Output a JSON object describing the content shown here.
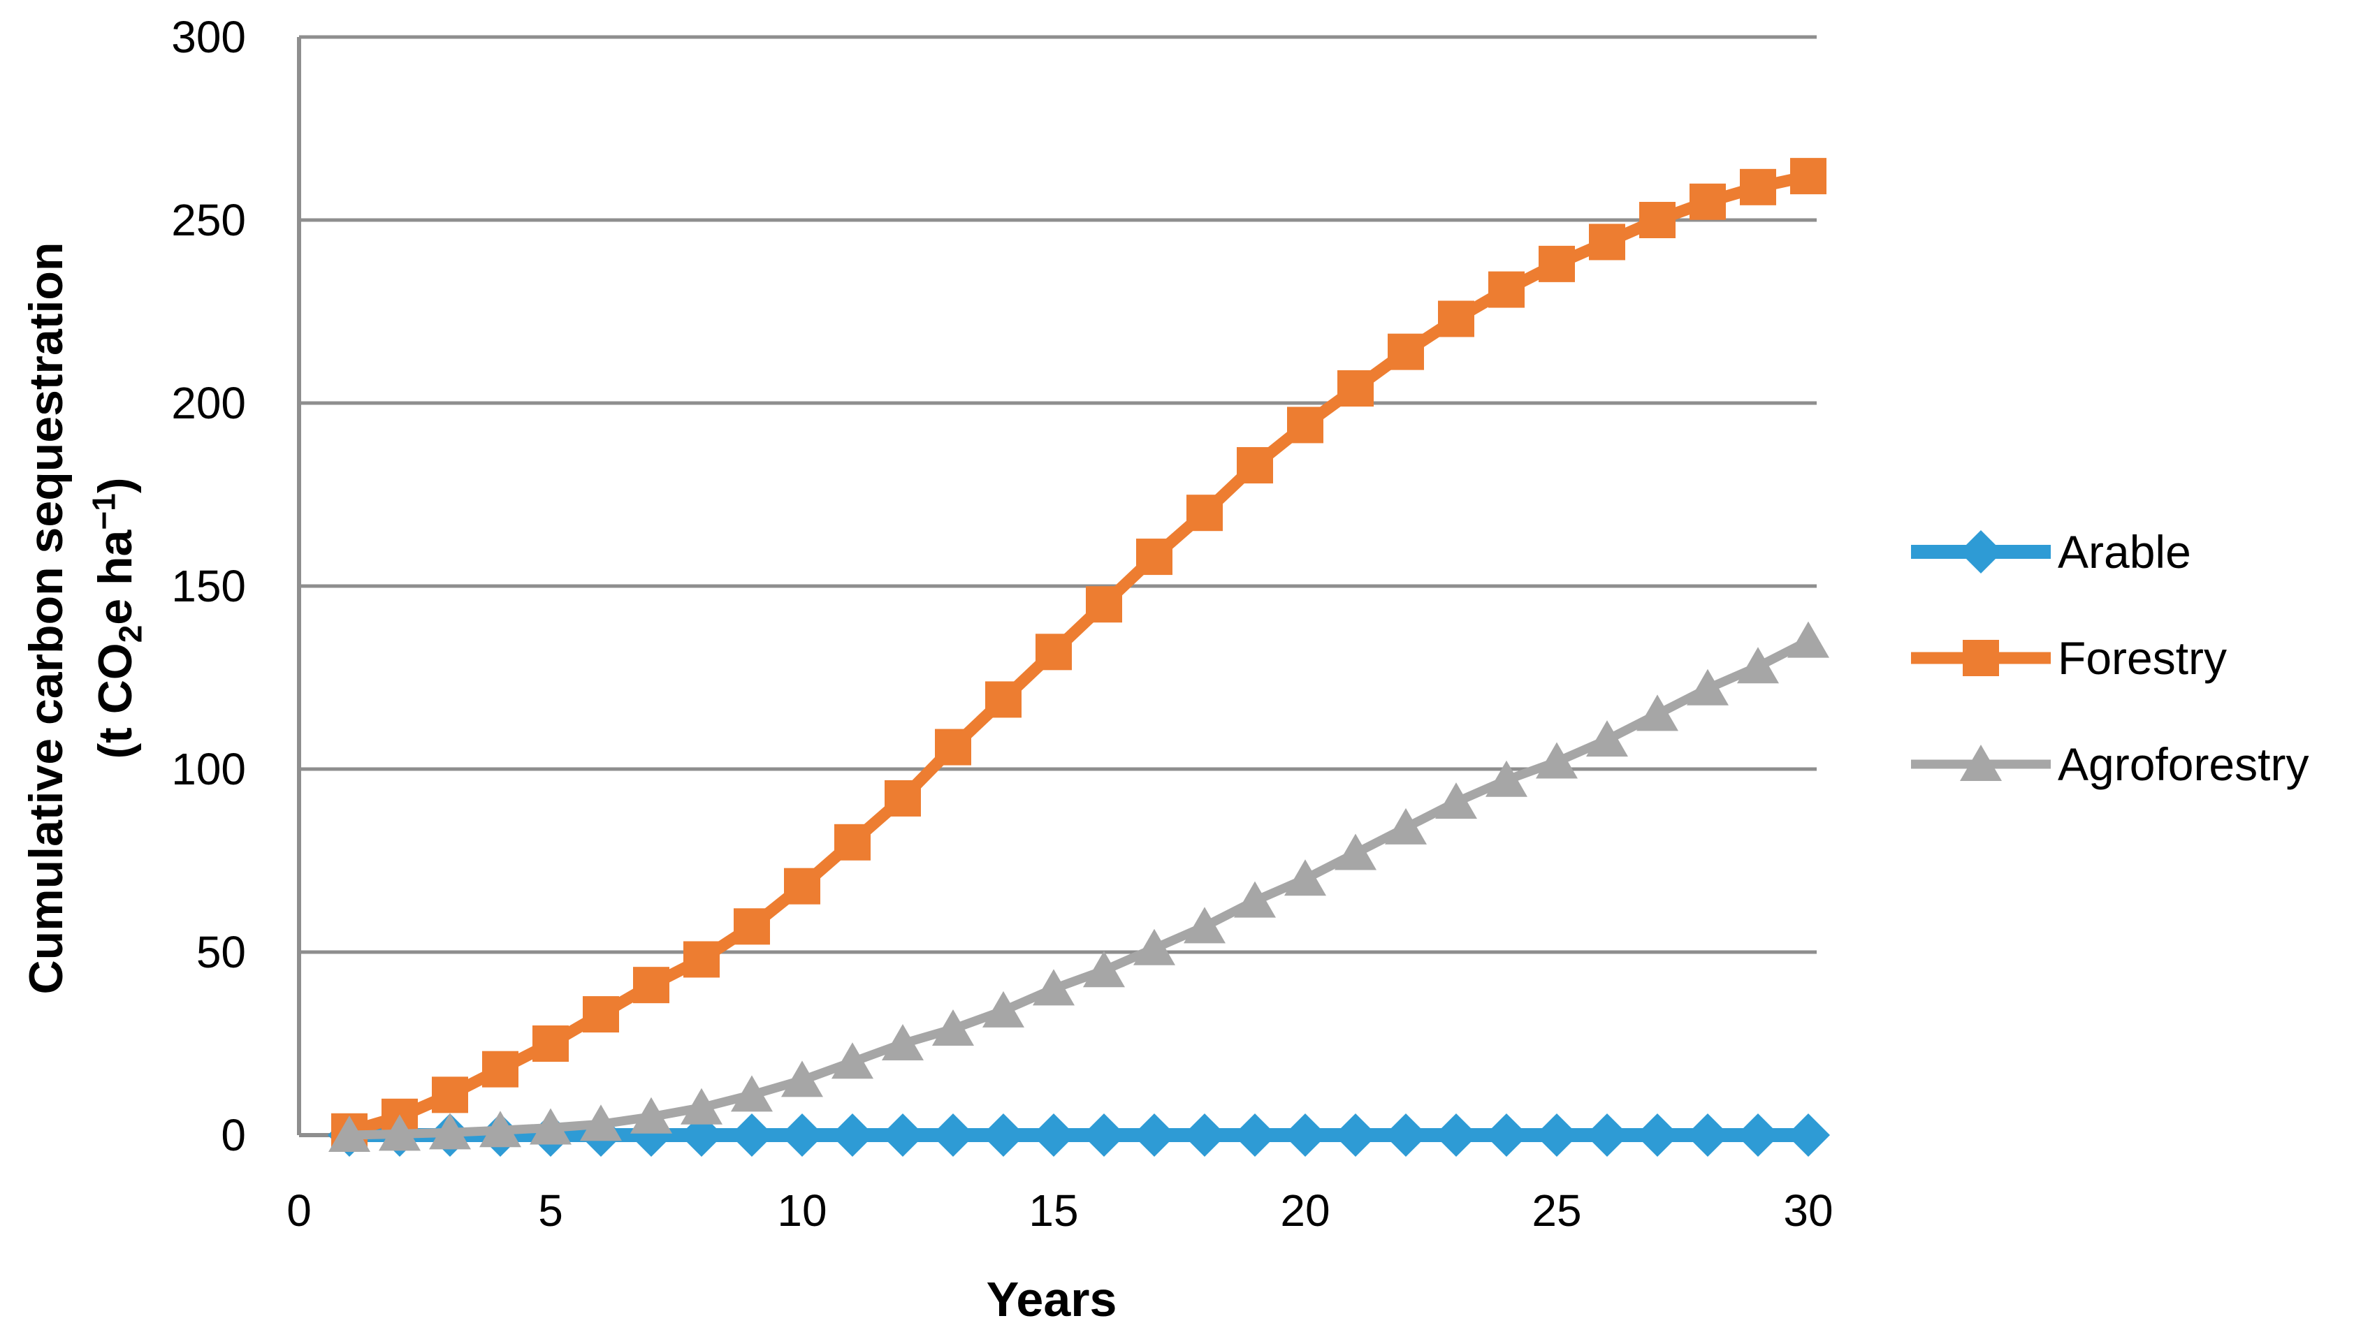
{
  "chart_data": {
    "type": "line",
    "title": "",
    "xlabel": "Years",
    "ylabel_line1": "Cumulative carbon sequestration",
    "ylabel_unit": {
      "prefix": "(t CO",
      "sub": "2",
      "mid": "e ha",
      "sup": "−1",
      "suffix": ")"
    },
    "xlim": [
      0,
      30
    ],
    "ylim": [
      0,
      300
    ],
    "x_ticks": [
      0,
      5,
      10,
      15,
      20,
      25,
      30
    ],
    "y_ticks": [
      0,
      50,
      100,
      150,
      200,
      250,
      300
    ],
    "grid": true,
    "legend_position": "right",
    "x": [
      1,
      2,
      3,
      4,
      5,
      6,
      7,
      8,
      9,
      10,
      11,
      12,
      13,
      14,
      15,
      16,
      17,
      18,
      19,
      20,
      21,
      22,
      23,
      24,
      25,
      26,
      27,
      28,
      29,
      30
    ],
    "series": [
      {
        "name": "Arable",
        "color": "#2E9BD5",
        "marker": "diamond",
        "values": [
          0,
          0,
          0,
          0,
          0,
          0,
          0,
          0,
          0,
          0,
          0,
          0,
          0,
          0,
          0,
          0,
          0,
          0,
          0,
          0,
          0,
          0,
          0,
          0,
          0,
          0,
          0,
          0,
          0,
          0
        ]
      },
      {
        "name": "Forestry",
        "color": "#ED7D31",
        "marker": "square",
        "values": [
          1,
          5,
          11,
          18,
          25,
          33,
          41,
          48,
          57,
          68,
          80,
          92,
          106,
          119,
          132,
          145,
          158,
          170,
          183,
          194,
          204,
          214,
          223,
          231,
          238,
          244,
          250,
          255,
          259,
          262
        ]
      },
      {
        "name": "Agroforestry",
        "color": "#A6A6A6",
        "marker": "triangle",
        "values": [
          0,
          0.3,
          0.7,
          1.3,
          2,
          3,
          5,
          7.5,
          11,
          15,
          20,
          25,
          29,
          34,
          40,
          45,
          51,
          57,
          64,
          70,
          77,
          84,
          91,
          97,
          102,
          108,
          115,
          122,
          128,
          135
        ]
      }
    ],
    "colors": {
      "gridline": "#8E8E8E",
      "axis": "#8E8E8E",
      "text": "#000000",
      "background": "#FFFFFF"
    }
  }
}
